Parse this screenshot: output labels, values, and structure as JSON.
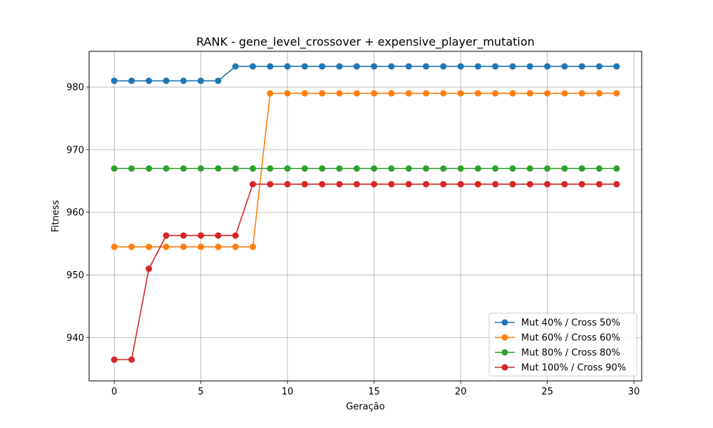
{
  "chart_data": {
    "type": "line",
    "title": "RANK - gene_level_crossover + expensive_player_mutation",
    "xlabel": "Geração",
    "ylabel": "Fitness",
    "xlim": [
      -1.45,
      30.45
    ],
    "ylim": [
      933.1,
      985.7
    ],
    "xticks": [
      0,
      5,
      10,
      15,
      20,
      25,
      30
    ],
    "yticks": [
      940,
      950,
      960,
      970,
      980
    ],
    "grid": true,
    "legend_position": "lower-right",
    "x": [
      0,
      1,
      2,
      3,
      4,
      5,
      6,
      7,
      8,
      9,
      10,
      11,
      12,
      13,
      14,
      15,
      16,
      17,
      18,
      19,
      20,
      21,
      22,
      23,
      24,
      25,
      26,
      27,
      28,
      29
    ],
    "series": [
      {
        "name": "Mut 40% / Cross 50%",
        "color": "#1f77b4",
        "values": [
          981,
          981,
          981,
          981,
          981,
          981,
          981,
          983.3,
          983.3,
          983.3,
          983.3,
          983.3,
          983.3,
          983.3,
          983.3,
          983.3,
          983.3,
          983.3,
          983.3,
          983.3,
          983.3,
          983.3,
          983.3,
          983.3,
          983.3,
          983.3,
          983.3,
          983.3,
          983.3,
          983.3
        ]
      },
      {
        "name": "Mut 60% / Cross 60%",
        "color": "#ff7f0e",
        "values": [
          954.5,
          954.5,
          954.5,
          954.5,
          954.5,
          954.5,
          954.5,
          954.5,
          954.5,
          979,
          979,
          979,
          979,
          979,
          979,
          979,
          979,
          979,
          979,
          979,
          979,
          979,
          979,
          979,
          979,
          979,
          979,
          979,
          979,
          979
        ]
      },
      {
        "name": "Mut 80% / Cross 80%",
        "color": "#2ca02c",
        "values": [
          967,
          967,
          967,
          967,
          967,
          967,
          967,
          967,
          967,
          967,
          967,
          967,
          967,
          967,
          967,
          967,
          967,
          967,
          967,
          967,
          967,
          967,
          967,
          967,
          967,
          967,
          967,
          967,
          967,
          967
        ]
      },
      {
        "name": "Mut 100% / Cross 90%",
        "color": "#d62728",
        "values": [
          936.5,
          936.5,
          951,
          956.3,
          956.3,
          956.3,
          956.3,
          956.3,
          964.5,
          964.5,
          964.5,
          964.5,
          964.5,
          964.5,
          964.5,
          964.5,
          964.5,
          964.5,
          964.5,
          964.5,
          964.5,
          964.5,
          964.5,
          964.5,
          964.5,
          964.5,
          964.5,
          964.5,
          964.5,
          964.5
        ]
      }
    ]
  }
}
